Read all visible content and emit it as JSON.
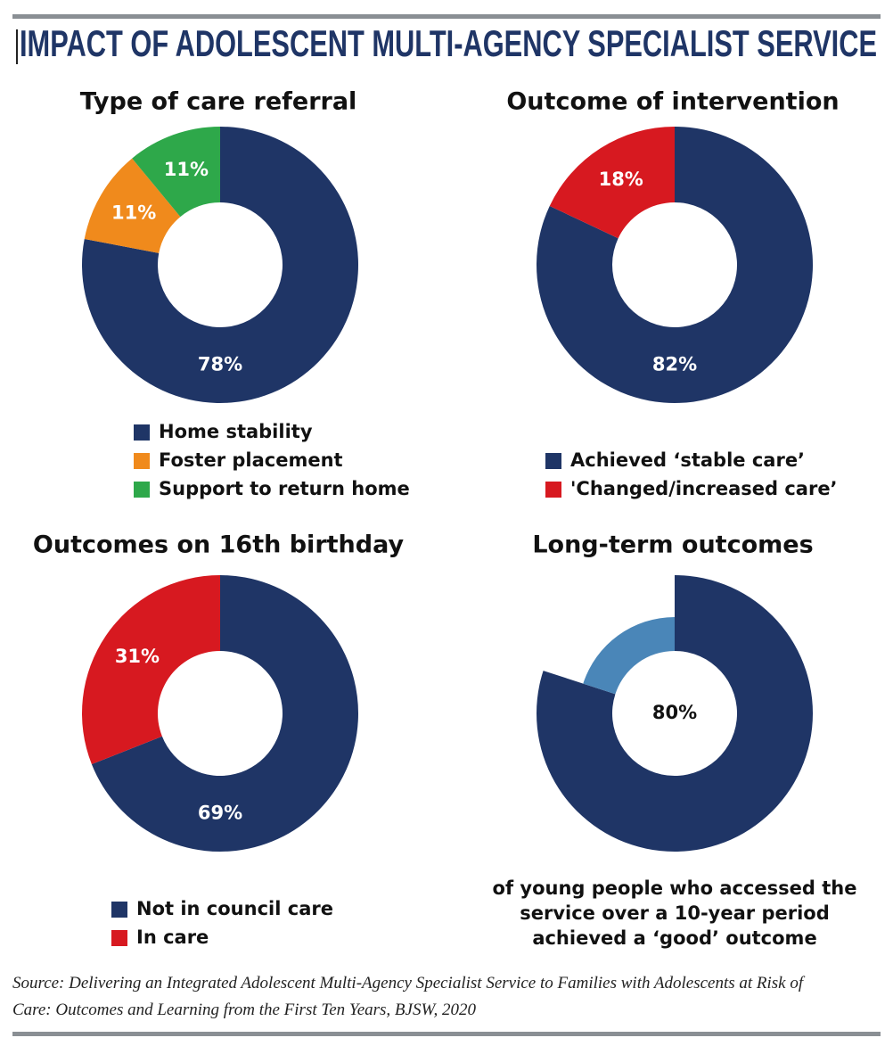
{
  "title": "IMPACT OF ADOLESCENT MULTI-AGENCY SPECIALIST SERVICE",
  "source": "Source: Delivering an Integrated Adolescent Multi-Agency Specialist Service to Families with Adolescents at Risk of Care: Outcomes and Learning from the First Ten Years, BJSW, 2020",
  "chart_data": [
    {
      "type": "donut",
      "title": "Type of care referral",
      "categories": [
        "Home stability",
        "Foster placement",
        "Support to return home"
      ],
      "values": [
        78,
        11,
        11
      ],
      "value_labels": [
        "78%",
        "11%",
        "11%"
      ],
      "colors": [
        "#1f3566",
        "#f08a1c",
        "#2ea84a"
      ]
    },
    {
      "type": "donut",
      "title": "Outcome of intervention",
      "categories": [
        "Achieved ‘stable care’",
        "'Changed/increased care’"
      ],
      "values": [
        82,
        18
      ],
      "value_labels": [
        "82%",
        "18%"
      ],
      "colors": [
        "#1f3566",
        "#d71920"
      ]
    },
    {
      "type": "donut",
      "title": "Outcomes on 16th birthday",
      "categories": [
        "Not in council care",
        "In care"
      ],
      "values": [
        69,
        31
      ],
      "value_labels": [
        "69%",
        "31%"
      ],
      "colors": [
        "#1f3566",
        "#d71920"
      ]
    },
    {
      "type": "progress",
      "title": "Long-term outcomes",
      "categories": [
        null,
        null
      ],
      "values": [
        80,
        20
      ],
      "value_labels": [
        "80%",
        null
      ],
      "colors": [
        "#1f3566",
        "#4a86b8"
      ],
      "annotation": "of young people who accessed the service over a 10-year period achieved a ‘good’ outcome"
    }
  ]
}
